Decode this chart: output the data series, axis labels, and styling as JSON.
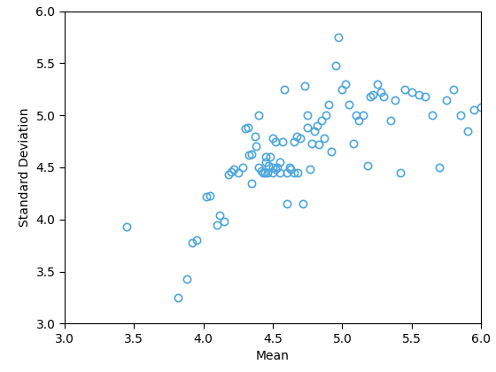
{
  "x": [
    3.45,
    3.82,
    3.88,
    3.92,
    3.95,
    4.02,
    4.05,
    4.1,
    4.12,
    4.15,
    4.18,
    4.2,
    4.22,
    4.25,
    4.28,
    4.3,
    4.32,
    4.33,
    4.35,
    4.35,
    4.37,
    4.38,
    4.4,
    4.4,
    4.42,
    4.43,
    4.44,
    4.45,
    4.45,
    4.46,
    4.47,
    4.48,
    4.5,
    4.5,
    4.5,
    4.52,
    4.52,
    4.53,
    4.55,
    4.55,
    4.57,
    4.58,
    4.6,
    4.6,
    4.62,
    4.63,
    4.65,
    4.65,
    4.67,
    4.68,
    4.7,
    4.72,
    4.73,
    4.75,
    4.75,
    4.77,
    4.78,
    4.8,
    4.82,
    4.83,
    4.85,
    4.87,
    4.88,
    4.9,
    4.92,
    4.95,
    4.97,
    5.0,
    5.02,
    5.05,
    5.08,
    5.1,
    5.12,
    5.15,
    5.18,
    5.2,
    5.22,
    5.25,
    5.28,
    5.3,
    5.35,
    5.38,
    5.42,
    5.45,
    5.5,
    5.55,
    5.6,
    5.65,
    5.7,
    5.75,
    5.8,
    5.85,
    5.9,
    5.95,
    6.0
  ],
  "y": [
    3.93,
    3.25,
    3.43,
    3.78,
    3.8,
    4.22,
    4.23,
    3.95,
    4.04,
    3.98,
    4.43,
    4.46,
    4.48,
    4.45,
    4.5,
    4.87,
    4.88,
    4.62,
    4.63,
    4.35,
    4.8,
    4.7,
    4.5,
    5.0,
    4.47,
    4.45,
    4.45,
    4.55,
    4.6,
    4.45,
    4.52,
    4.6,
    4.5,
    4.45,
    4.78,
    4.48,
    4.75,
    4.5,
    4.55,
    4.45,
    4.75,
    5.25,
    4.45,
    4.15,
    4.5,
    4.48,
    4.45,
    4.75,
    4.8,
    4.45,
    4.78,
    4.15,
    5.28,
    4.88,
    5.0,
    4.48,
    4.73,
    4.85,
    4.9,
    4.72,
    4.95,
    4.78,
    5.0,
    5.1,
    4.65,
    5.48,
    5.75,
    5.25,
    5.3,
    5.1,
    4.73,
    5.0,
    4.95,
    5.0,
    4.52,
    5.18,
    5.2,
    5.3,
    5.22,
    5.18,
    4.95,
    5.15,
    4.45,
    5.25,
    5.22,
    5.2,
    5.18,
    5.0,
    4.5,
    5.15,
    5.25,
    5.0,
    4.85,
    5.05,
    5.08
  ],
  "marker_color": "#4DA6DD",
  "marker_size": 6,
  "marker_style": "o",
  "marker_facecolor": "none",
  "marker_linewidth": 1.2,
  "xlabel": "Mean",
  "ylabel": "Standard Deviation",
  "xlim": [
    3,
    6
  ],
  "ylim": [
    3,
    6
  ],
  "xticks": [
    3,
    3.5,
    4,
    4.5,
    5,
    5.5,
    6
  ],
  "yticks": [
    3,
    3.5,
    4,
    4.5,
    5,
    5.5,
    6
  ],
  "figsize": [
    5.6,
    4.2
  ],
  "dpi": 100,
  "background_color": "#ffffff",
  "label_fontsize": 10,
  "tick_fontsize": 10
}
